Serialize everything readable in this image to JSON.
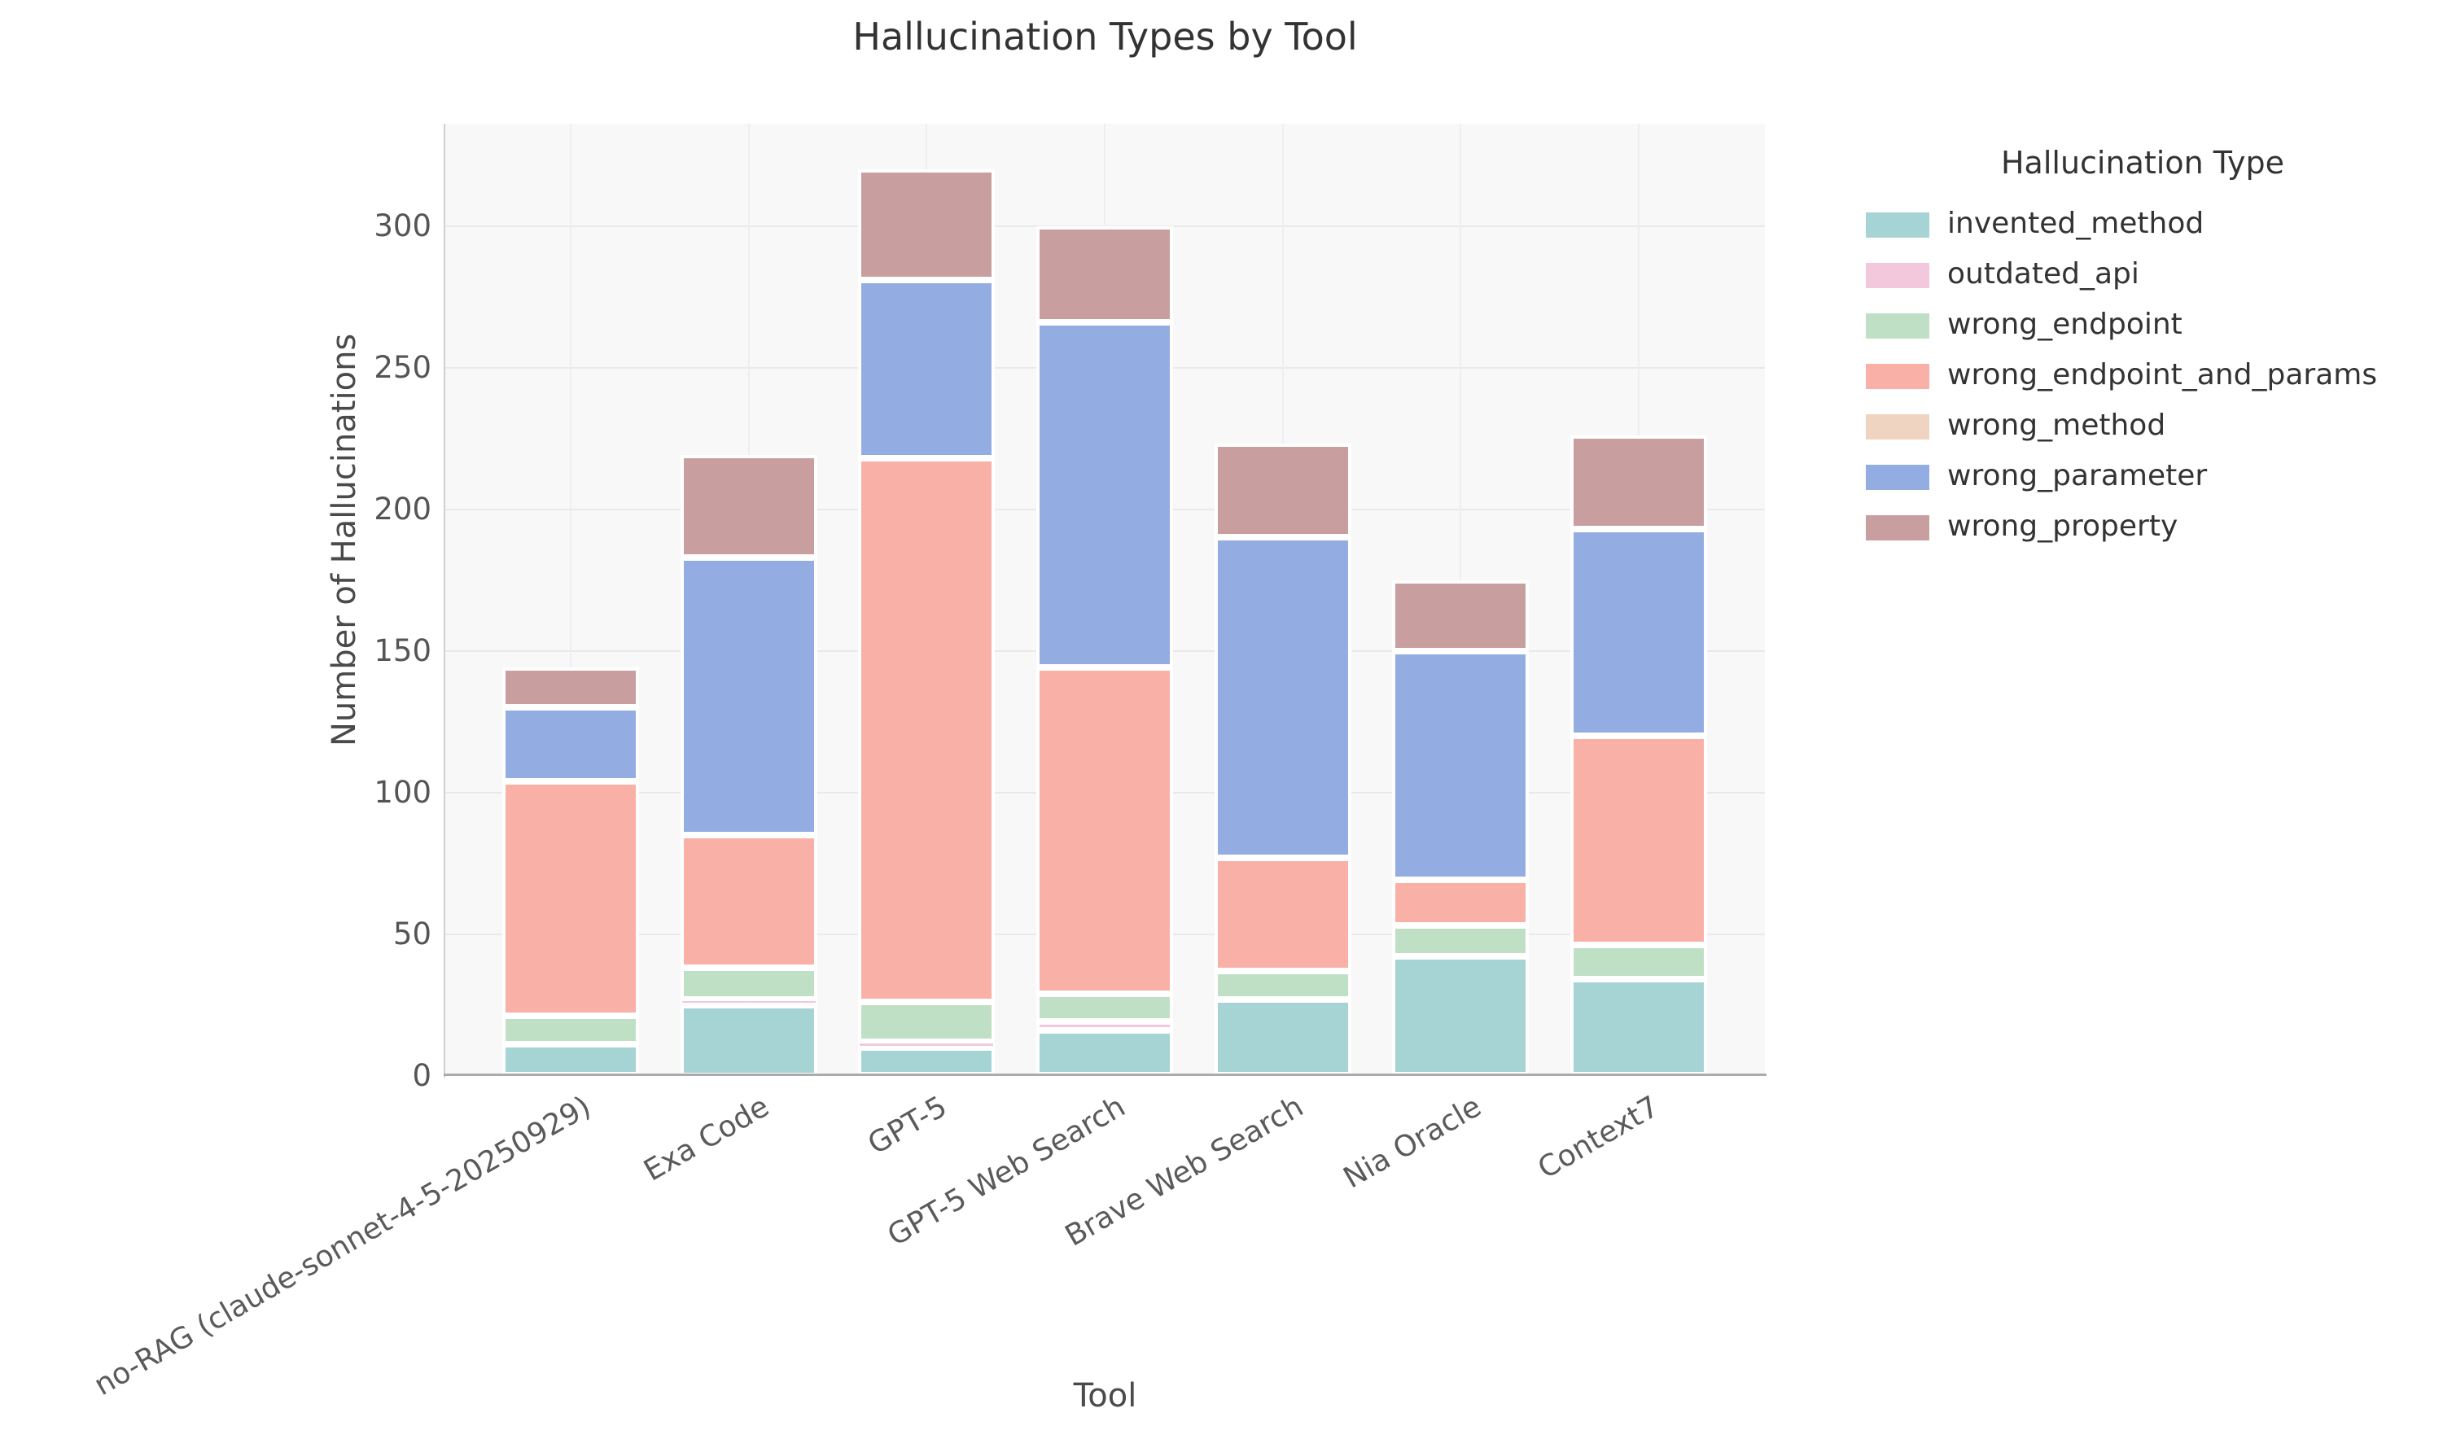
{
  "title": "Hallucination Types by Tool",
  "x_axis": {
    "label": "Tool",
    "categories": [
      "no-RAG (claude-sonnet-4-5-20250929)",
      "Exa Code",
      "GPT-5",
      "GPT-5 Web Search",
      "Brave Web Search",
      "Nia Oracle",
      "Context7"
    ]
  },
  "y_axis": {
    "label": "Number of Hallucinations",
    "ticks": [
      0,
      50,
      100,
      150,
      200,
      250,
      300
    ]
  },
  "legend": {
    "title": "Hallucination Type"
  },
  "colors": {
    "figure_background": "#ffffff",
    "plot_background": "#f8f8f8",
    "gridline": "#e9e9e9",
    "bottom_spine": "#ababab",
    "left_spine": "#cfcfcf",
    "segment_edge": "#ffffff"
  },
  "chart_data": {
    "type": "bar",
    "stacked": true,
    "title": "Hallucination Types by Tool",
    "xlabel": "Tool",
    "ylabel": "Number of Hallucinations",
    "ylim": [
      0,
      335
    ],
    "grid": true,
    "legend_position": "right",
    "legend_title": "Hallucination Type",
    "categories": [
      "no-RAG (claude-sonnet-4-5-20250929)",
      "Exa Code",
      "GPT-5",
      "GPT-5 Web Search",
      "Brave Web Search",
      "Nia Oracle",
      "Context7"
    ],
    "series": [
      {
        "name": "invented_method",
        "color": "#a6d3d4",
        "values": [
          11,
          25,
          10,
          16,
          27,
          42,
          34
        ]
      },
      {
        "name": "outdated_api",
        "color": "#f3c7dc",
        "values": [
          0,
          2,
          2,
          3,
          0,
          0,
          0
        ]
      },
      {
        "name": "wrong_endpoint",
        "color": "#c0e0c5",
        "values": [
          10,
          11,
          14,
          10,
          10,
          11,
          12
        ]
      },
      {
        "name": "wrong_endpoint_and_params",
        "color": "#f9b0a7",
        "values": [
          83,
          47,
          192,
          115,
          40,
          16,
          74
        ]
      },
      {
        "name": "wrong_method",
        "color": "#f0d4c2",
        "values": [
          0,
          0,
          0,
          0,
          0,
          0,
          0
        ]
      },
      {
        "name": "wrong_parameter",
        "color": "#93ade3",
        "values": [
          26,
          98,
          63,
          122,
          113,
          81,
          73
        ]
      },
      {
        "name": "wrong_property",
        "color": "#c99e9f",
        "values": [
          14,
          36,
          39,
          34,
          33,
          25,
          33
        ]
      }
    ]
  }
}
